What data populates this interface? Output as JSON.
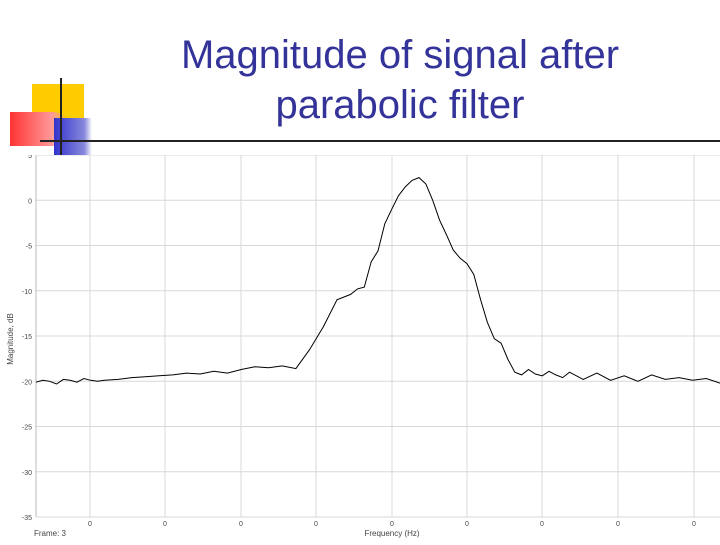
{
  "slide": {
    "title_line1": "Magnitude of signal after",
    "title_line2": "parabolic filter",
    "title_color": "#333399",
    "accent_colors": [
      "#ffcc00",
      "#ff3333",
      "#3333cc"
    ]
  },
  "chart_data": {
    "type": "line",
    "title": "",
    "xlabel": "Frequency (Hz)",
    "ylabel": "Magnitude, dB",
    "footer_left": "Frame: 3",
    "ylim": [
      -35,
      5
    ],
    "yticks": [
      5,
      0,
      -5,
      -10,
      -15,
      -20,
      -25,
      -30,
      -35
    ],
    "xlim": [
      0,
      10
    ],
    "xtick_labels": [
      "0",
      "0",
      "0",
      "0",
      "0",
      "0",
      "0",
      "0",
      "0"
    ],
    "grid": true,
    "line_color": "#000000",
    "series": [
      {
        "x": [
          0,
          0.1,
          0.2,
          0.3,
          0.4,
          0.5,
          0.6,
          0.7,
          0.8,
          0.9,
          1.0,
          1.2,
          1.4,
          1.6,
          1.8,
          2.0,
          2.2,
          2.4,
          2.6,
          2.8,
          3.0,
          3.2,
          3.4,
          3.6,
          3.8,
          4.0,
          4.2,
          4.4,
          4.6,
          4.7,
          4.8,
          4.9,
          5.0,
          5.1,
          5.2,
          5.3,
          5.4,
          5.5,
          5.6,
          5.7,
          5.8,
          5.9,
          6.0,
          6.1,
          6.2,
          6.3,
          6.4,
          6.5,
          6.6,
          6.7,
          6.8,
          6.9,
          7.0,
          7.1,
          7.2,
          7.3,
          7.4,
          7.5,
          7.6,
          7.7,
          7.8,
          7.9,
          8.0,
          8.2,
          8.4,
          8.6,
          8.8,
          9.0,
          9.2,
          9.4,
          9.6,
          9.8,
          10.0
        ],
        "y": [
          -20.1,
          -19.9,
          -20.0,
          -20.3,
          -19.8,
          -19.9,
          -20.1,
          -19.7,
          -19.9,
          -20.0,
          -19.9,
          -19.8,
          -19.6,
          -19.5,
          -19.4,
          -19.3,
          -19.1,
          -19.2,
          -18.9,
          -19.1,
          -18.7,
          -18.4,
          -18.5,
          -18.3,
          -18.6,
          -16.5,
          -14.0,
          -11.0,
          -10.4,
          -9.8,
          -9.6,
          -6.8,
          -5.6,
          -2.6,
          -1.0,
          0.5,
          1.5,
          2.2,
          2.5,
          1.8,
          0.0,
          -2.2,
          -3.8,
          -5.5,
          -6.4,
          -7.0,
          -8.2,
          -11.0,
          -13.5,
          -15.3,
          -15.8,
          -17.6,
          -19.0,
          -19.3,
          -18.7,
          -19.2,
          -19.4,
          -18.9,
          -19.3,
          -19.6,
          -19.0,
          -19.4,
          -19.8,
          -19.1,
          -19.9,
          -19.4,
          -20.0,
          -19.3,
          -19.8,
          -19.6,
          -19.9,
          -19.7,
          -20.2
        ]
      }
    ]
  }
}
